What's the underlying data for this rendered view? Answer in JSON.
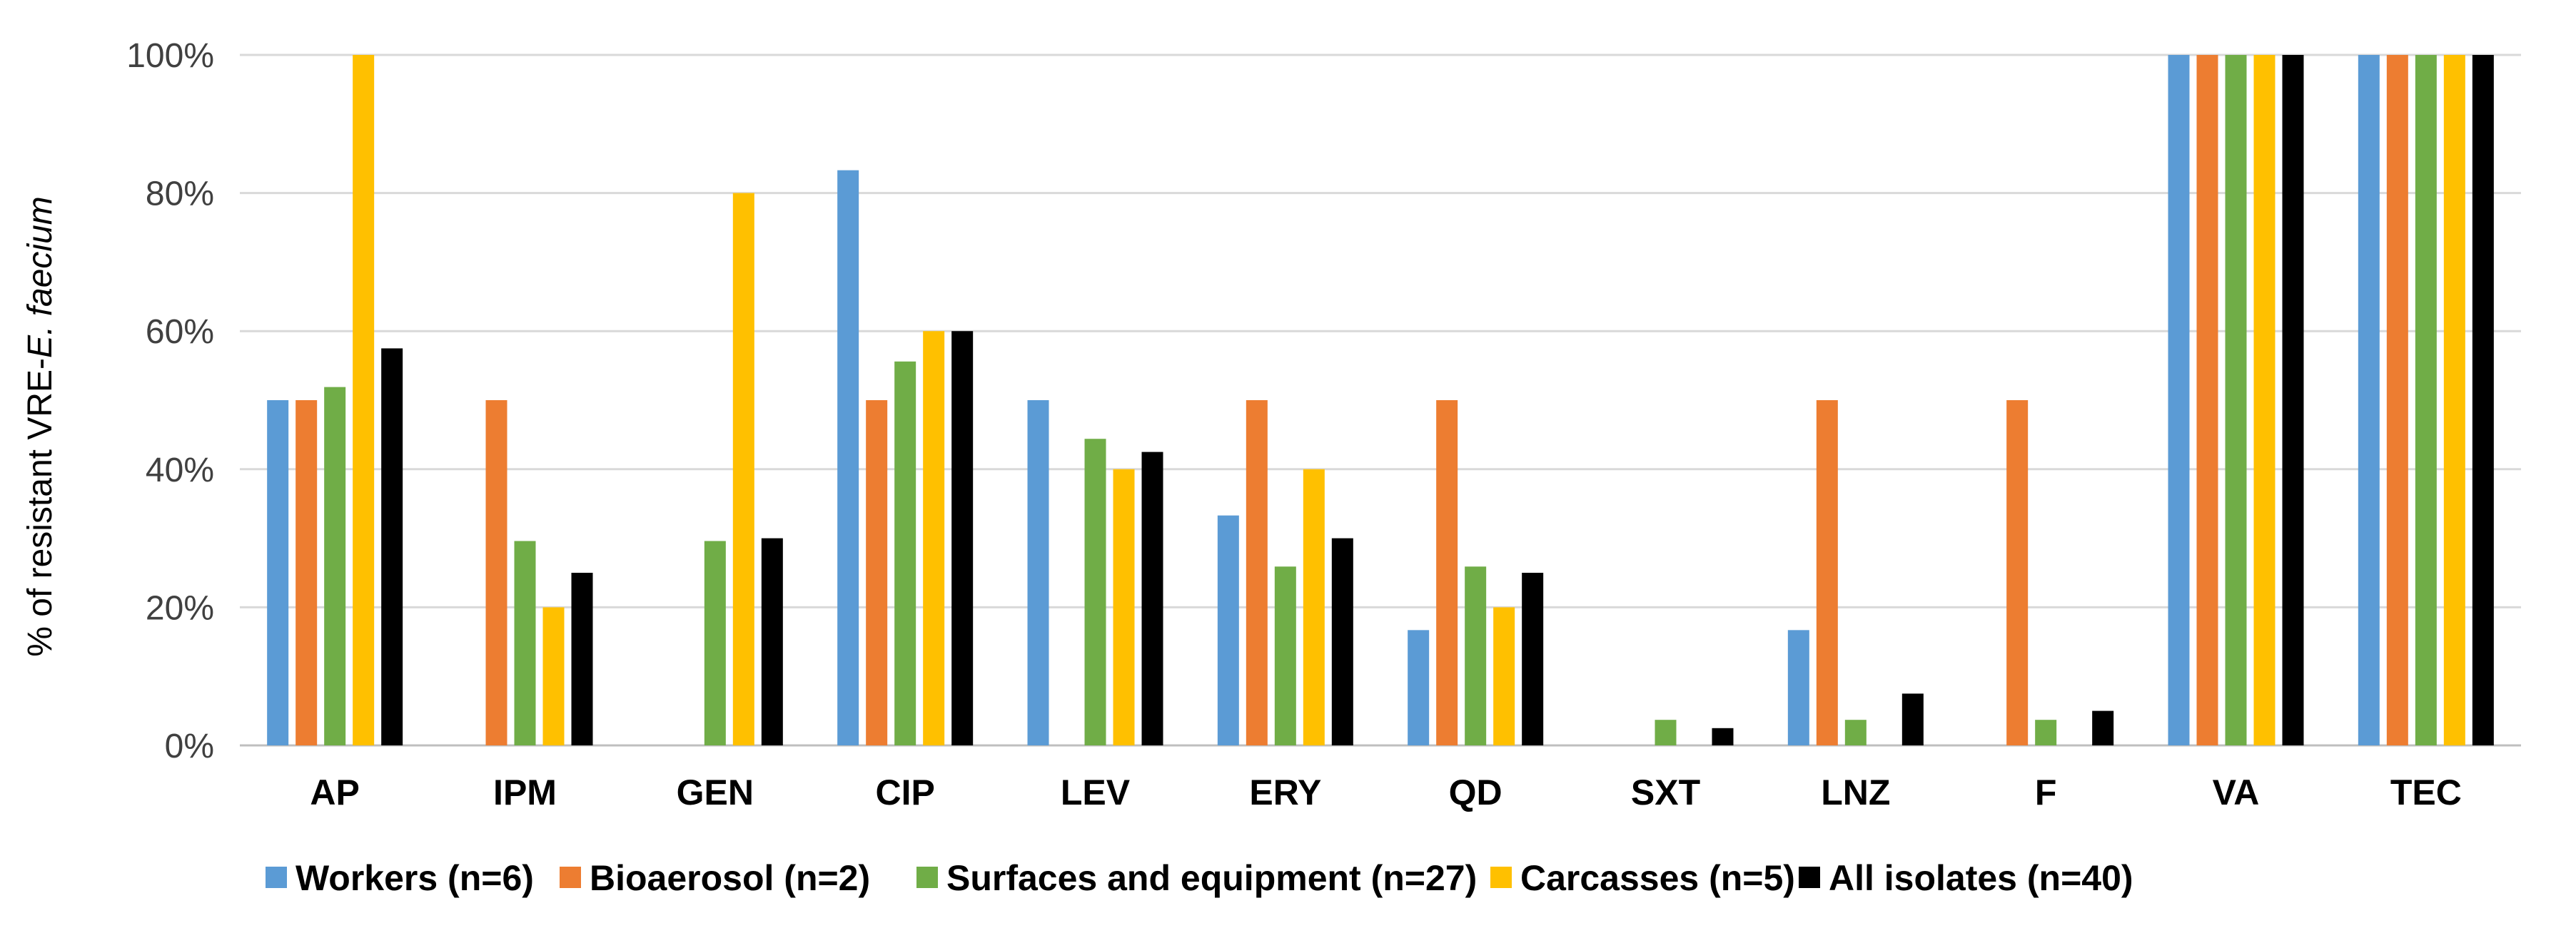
{
  "chart_data": {
    "type": "bar",
    "title": "",
    "xlabel": "",
    "ylabel": "% of resistant VRE-E. faecium",
    "ylabel_parts": {
      "prefix": "% of resistant VRE-",
      "italic": "E. faecium"
    },
    "ylim": [
      0,
      100
    ],
    "yticks": [
      0,
      20,
      40,
      60,
      80,
      100
    ],
    "ytick_labels": [
      "0%",
      "20%",
      "40%",
      "60%",
      "80%",
      "100%"
    ],
    "grid": true,
    "legend_position": "bottom",
    "categories": [
      "AP",
      "IPM",
      "GEN",
      "CIP",
      "LEV",
      "ERY",
      "QD",
      "SXT",
      "LNZ",
      "F",
      "VA",
      "TEC"
    ],
    "series": [
      {
        "name": "Workers (n=6)",
        "color": "#5b9bd5",
        "values": [
          50,
          0,
          0,
          83.3,
          50,
          33.3,
          16.7,
          0,
          16.7,
          0,
          100,
          100
        ]
      },
      {
        "name": "Bioaerosol (n=2)",
        "color": "#ed7d31",
        "values": [
          50,
          50,
          0,
          50,
          0,
          50,
          50,
          0,
          50,
          50,
          100,
          100
        ]
      },
      {
        "name": "Surfaces and equipment (n=27)",
        "color": "#70ad47",
        "values": [
          51.9,
          29.6,
          29.6,
          55.6,
          44.4,
          25.9,
          25.9,
          3.7,
          3.7,
          3.7,
          100,
          100
        ]
      },
      {
        "name": "Carcasses (n=5)",
        "color": "#ffc000",
        "values": [
          100,
          20,
          80,
          60,
          40,
          40,
          20,
          0,
          0,
          0,
          100,
          100
        ]
      },
      {
        "name": "All isolates (n=40)",
        "color": "#000000",
        "values": [
          57.5,
          25,
          30,
          60,
          42.5,
          30,
          25,
          2.5,
          7.5,
          5,
          100,
          100
        ]
      }
    ]
  }
}
